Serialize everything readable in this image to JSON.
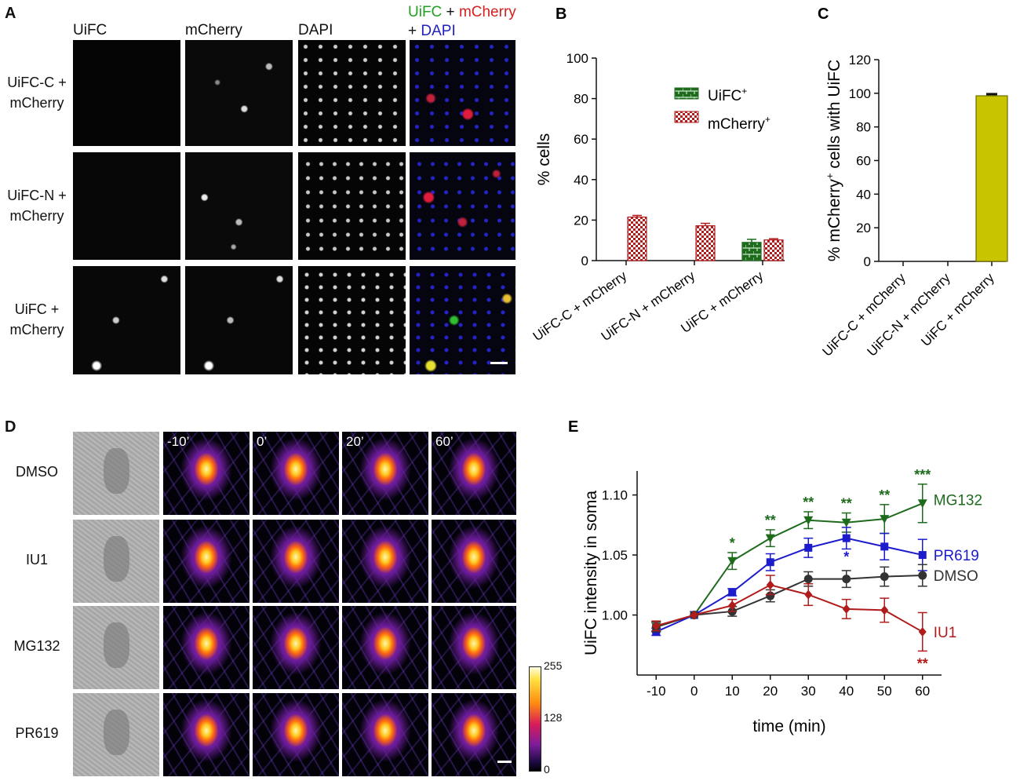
{
  "panel_a": {
    "label": "A",
    "headers": [
      "UiFC",
      "mCherry",
      "DAPI"
    ],
    "merge_header": {
      "part1": "UiFC",
      "plus1": " + ",
      "part2": "mCherry",
      "plus2": "+ ",
      "part3": "DAPI"
    },
    "rows": [
      {
        "line1": "UiFC-C +",
        "line2": "mCherry"
      },
      {
        "line1": "UiFC-N +",
        "line2": "mCherry"
      },
      {
        "line1": "UiFC +",
        "line2": "mCherry"
      }
    ]
  },
  "panel_d": {
    "label": "D",
    "time_labels": [
      "-10’",
      "0’",
      "20’",
      "60’"
    ],
    "rows": [
      "DMSO",
      "IU1",
      "MG132",
      "PR619"
    ],
    "colorbar_ticks": [
      "255",
      "128",
      "0"
    ]
  },
  "chart_data": [
    {
      "panel": "B",
      "type": "bar",
      "categories": [
        "UiFC-C + mCherry",
        "UiFC-N + mCherry",
        "UiFC + mCherry"
      ],
      "series": [
        {
          "name": "UiFC+",
          "values": [
            0,
            0,
            9
          ],
          "errors": [
            0,
            0,
            1.5
          ]
        },
        {
          "name": "mCherry+",
          "values": [
            21.5,
            17.2,
            10.2
          ],
          "errors": [
            0.8,
            1.2,
            0.6
          ]
        }
      ],
      "legend": [
        {
          "text": "UiFC",
          "sup": "+"
        },
        {
          "text": "mCherry",
          "sup": "+"
        }
      ],
      "ylabel": "% cells",
      "ylim": [
        0,
        100
      ],
      "yticks": [
        0,
        20,
        40,
        60,
        80,
        100
      ]
    },
    {
      "panel": "C",
      "type": "bar",
      "categories": [
        "UiFC-C + mCherry",
        "UiFC-N + mCherry",
        "UiFC + mCherry"
      ],
      "values": [
        0,
        0,
        98.5
      ],
      "errors": [
        0,
        0,
        1.0
      ],
      "ylabel_parts": {
        "pre": "% mCherry",
        "sup": "+",
        "post": " cells with UiFC"
      },
      "ylim": [
        0,
        120
      ],
      "yticks": [
        0,
        20,
        40,
        60,
        80,
        100,
        120
      ]
    },
    {
      "panel": "E",
      "type": "line",
      "x": [
        -10,
        0,
        10,
        20,
        30,
        40,
        50,
        60
      ],
      "xlabel": "time (min)",
      "ylabel": "UiFC intensity in soma",
      "xlim": [
        -15,
        65
      ],
      "ylim": [
        0.95,
        1.12
      ],
      "xticks": [
        -10,
        0,
        10,
        20,
        30,
        40,
        50,
        60
      ],
      "yticks": [
        "1.00",
        "1.05",
        "1.10"
      ],
      "series": [
        {
          "name": "MG132",
          "color": "#1e6b1e",
          "marker": "triangle-down",
          "values": [
            0.99,
            1.0,
            1.045,
            1.064,
            1.079,
            1.077,
            1.08,
            1.093
          ],
          "errors": [
            0.004,
            0,
            0.007,
            0.007,
            0.007,
            0.008,
            0.012,
            0.016
          ],
          "stars": [
            "",
            "",
            "*",
            "**",
            "**",
            "**",
            "**",
            "***"
          ]
        },
        {
          "name": "PR619",
          "color": "#1c1ccc",
          "marker": "square",
          "values": [
            0.986,
            1.0,
            1.019,
            1.044,
            1.056,
            1.064,
            1.057,
            1.05
          ],
          "errors": [
            0.003,
            0,
            0.003,
            0.007,
            0.008,
            0.009,
            0.011,
            0.013
          ],
          "stars": [
            "",
            "",
            "",
            "",
            "",
            "*",
            "",
            ""
          ]
        },
        {
          "name": "DMSO",
          "color": "#333333",
          "marker": "circle",
          "values": [
            0.99,
            1.0,
            1.003,
            1.016,
            1.03,
            1.03,
            1.032,
            1.033
          ],
          "errors": [
            0.004,
            0,
            0.004,
            0.005,
            0.006,
            0.007,
            0.008,
            0.009
          ],
          "stars": [
            "",
            "",
            "",
            "",
            "",
            "",
            "",
            ""
          ]
        },
        {
          "name": "IU1",
          "color": "#b01c1c",
          "marker": "diamond",
          "values": [
            0.991,
            1.0,
            1.008,
            1.025,
            1.017,
            1.005,
            1.004,
            0.986
          ],
          "errors": [
            0.004,
            0,
            0.005,
            0.008,
            0.009,
            0.008,
            0.01,
            0.016
          ],
          "stars": [
            "",
            "",
            "",
            "",
            "",
            "",
            "",
            "**"
          ]
        }
      ]
    }
  ]
}
